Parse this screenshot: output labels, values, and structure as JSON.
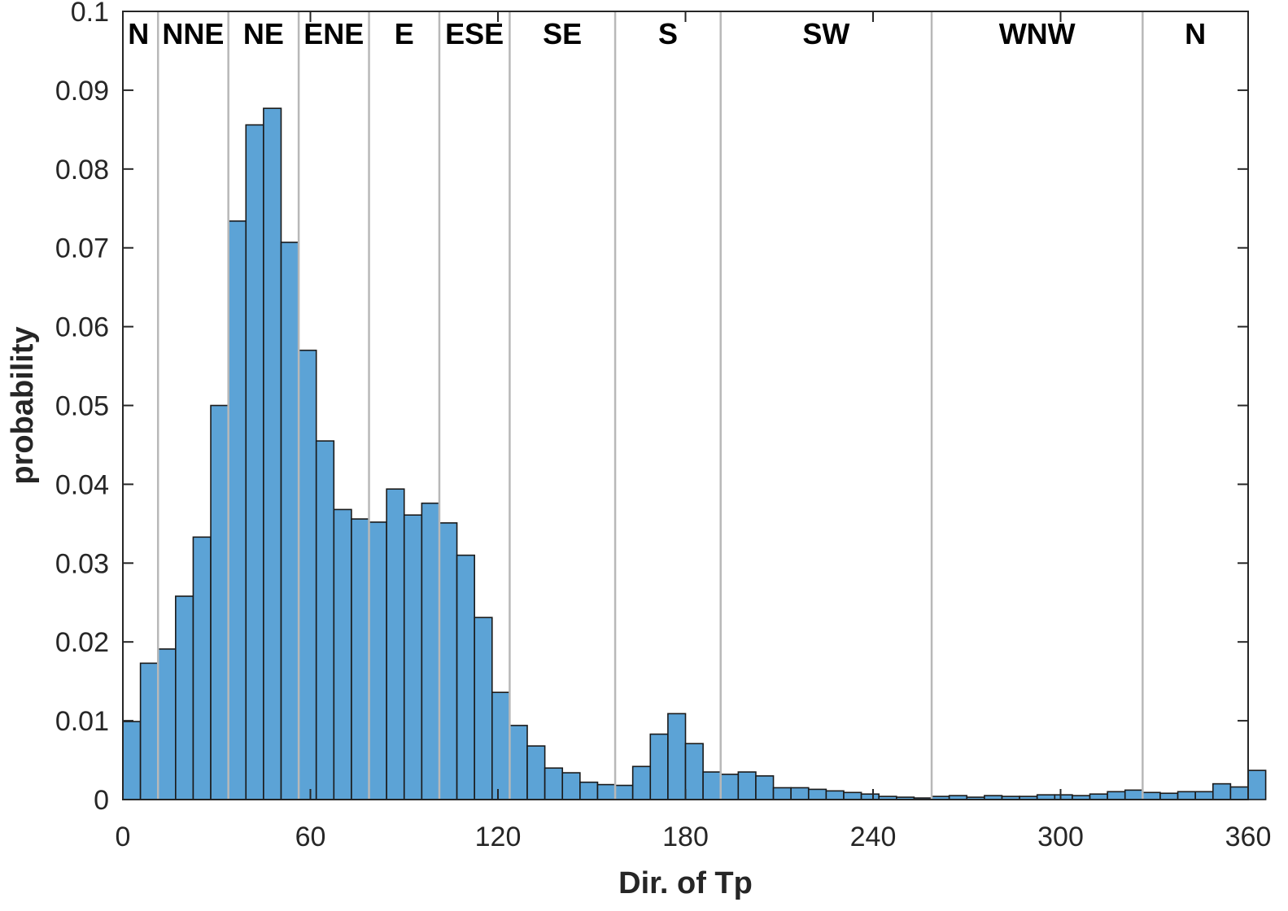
{
  "chart_data": {
    "type": "bar",
    "xlabel": "Dir. of Tp",
    "ylabel": "probability",
    "xlim": [
      0,
      360
    ],
    "ylim": [
      0,
      0.1
    ],
    "xticks": [
      0,
      60,
      120,
      180,
      240,
      300,
      360
    ],
    "xtick_labels": [
      "0",
      "60",
      "120",
      "180",
      "240",
      "300",
      "360"
    ],
    "yticks": [
      0,
      0.01,
      0.02,
      0.03,
      0.04,
      0.05,
      0.06,
      0.07,
      0.08,
      0.09,
      0.1
    ],
    "ytick_labels": [
      "0",
      "0.01",
      "0.02",
      "0.03",
      "0.04",
      "0.05",
      "0.06",
      "0.07",
      "0.08",
      "0.09",
      "0.1"
    ],
    "bin_width": 5.625,
    "bin_edges_start": 0,
    "values": [
      0.0099,
      0.0173,
      0.0191,
      0.0258,
      0.0333,
      0.05,
      0.0734,
      0.0856,
      0.0877,
      0.0707,
      0.057,
      0.0455,
      0.0368,
      0.0356,
      0.0352,
      0.0394,
      0.0361,
      0.0376,
      0.0351,
      0.031,
      0.0231,
      0.0136,
      0.0094,
      0.0068,
      0.004,
      0.0034,
      0.0022,
      0.0019,
      0.0018,
      0.0042,
      0.0083,
      0.0109,
      0.0071,
      0.0035,
      0.0032,
      0.0035,
      0.003,
      0.0015,
      0.0015,
      0.0013,
      0.0011,
      0.0009,
      0.0007,
      0.0004,
      0.0003,
      0.0002,
      0.0004,
      0.0005,
      0.0003,
      0.0005,
      0.0004,
      0.0004,
      0.0006,
      0.0006,
      0.0005,
      0.0007,
      0.001,
      0.0012,
      0.0009,
      0.0008,
      0.001,
      0.001,
      0.002,
      0.0016,
      0.0037
    ],
    "bar_color": "#5ca3d6",
    "bar_edge_color": "#1a1a1a",
    "sector_line_color": "#b8b8b8",
    "sector_boundaries": [
      11.25,
      33.75,
      56.25,
      78.75,
      101.25,
      123.75,
      157.5,
      191.25,
      258.75,
      326.25
    ],
    "sector_labels": [
      {
        "text": "N",
        "x": 5.0
      },
      {
        "text": "NNE",
        "x": 22.5
      },
      {
        "text": "NE",
        "x": 45
      },
      {
        "text": "ENE",
        "x": 67.5
      },
      {
        "text": "E",
        "x": 90
      },
      {
        "text": "ESE",
        "x": 112.5
      },
      {
        "text": "SE",
        "x": 140.6
      },
      {
        "text": "S",
        "x": 174.4
      },
      {
        "text": "SW",
        "x": 225
      },
      {
        "text": "WNW",
        "x": 292.5
      },
      {
        "text": "N",
        "x": 343.1
      }
    ],
    "grid": false,
    "box": true
  }
}
